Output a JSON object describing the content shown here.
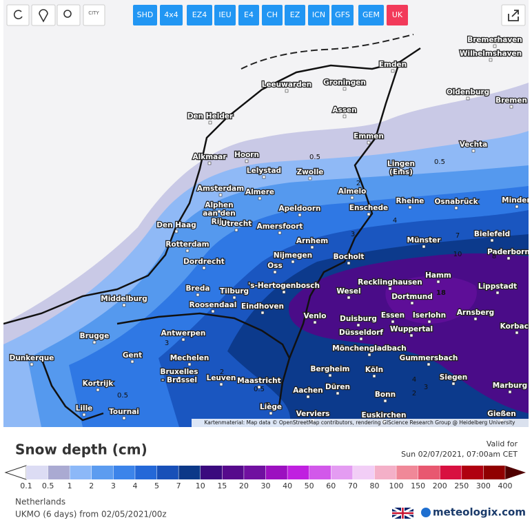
{
  "toolbar": {
    "city_icon": "CITY",
    "models": [
      "SHD",
      "4x4",
      "EZ4",
      "IEU",
      "E4",
      "CH",
      "EZ",
      "ICN",
      "GFS",
      "GEM",
      "UK"
    ]
  },
  "map": {
    "cities": [
      "Bremerhaven",
      "Wilhelmshaven",
      "Emden",
      "Leeuwarden",
      "Groningen",
      "Oldenburg",
      "Bremen",
      "Assen",
      "Den Helder",
      "Emmen",
      "Vechta",
      "Alkmaar",
      "Hoorn",
      "Lelystad",
      "Zwolle",
      [
        "Lingen",
        "(Ems)"
      ],
      "Amsterdam",
      "Almere",
      "Almelo",
      "Rheine",
      "Osnabrück",
      "Minden",
      [
        "Alphen",
        "aan den",
        "Rijn"
      ],
      "Apeldoorn",
      "Enschede",
      "Den Haag",
      "Utrecht",
      "Amersfoort",
      "Arnhem",
      "Münster",
      "Bielefeld",
      "Rotterdam",
      "Nijmegen",
      "Bocholt",
      "Dordrecht",
      "Oss",
      "Paderborn",
      "Hamm",
      "Recklinghausen",
      "Lippstadt",
      "Breda",
      "Tilburg",
      "'s-Hertogenbosch",
      "Wesel",
      "Dortmund",
      "Middelburg",
      "Roosendaal",
      "Eindhoven",
      "Arnsberg",
      "Venlo",
      "Duisburg",
      "Essen",
      "Iserlohn",
      "Korbach",
      "Wuppertal",
      "Antwerpen",
      "Brugge",
      "Düsseldorf",
      "Mönchengladbach",
      "Gent",
      "Mechelen",
      "Dunkerque",
      "Gummersbach",
      "Bergheim",
      "Köln",
      [
        "Bruxelles",
        "- Brussel"
      ],
      "Leuven",
      "Maastricht",
      "Siegen",
      "Kortrijk",
      "Düren",
      "Marburg",
      "Aachen",
      "Bonn",
      "Lille",
      "Tournai",
      "Liège",
      "Verviers",
      "Euskirchen",
      "Gießen"
    ],
    "contour_labels": [
      0.5,
      0.5,
      2,
      4,
      3,
      7,
      10,
      8,
      18,
      3,
      2,
      0.5,
      0.5,
      4,
      3,
      2
    ],
    "attribution": "Kartenmaterial: Map data © OpenStreetMap contributors, rendering GIScience Research Group @ Heidelberg University"
  },
  "legend": {
    "title": "Snow depth (cm)",
    "valid_label": "Valid for",
    "valid_time": "Sun 02/07/2021, 07:00am CET",
    "scale": {
      "labels": [
        0.1,
        0.5,
        1,
        2,
        3,
        4,
        5,
        7,
        10,
        15,
        20,
        30,
        40,
        50,
        60,
        70,
        80,
        100,
        150,
        200,
        250,
        300,
        400
      ],
      "colors": [
        "#dcdcf4",
        "#aaaad2",
        "#8cb8f8",
        "#5c9cf0",
        "#3c84ea",
        "#2468d8",
        "#1850b8",
        "#0c3888",
        "#3a0a7e",
        "#560a8c",
        "#7010a0",
        "#9c10c0",
        "#c020e0",
        "#d258ea",
        "#e49cf2",
        "#f2cef6",
        "#f4b0c8",
        "#f08898",
        "#e85870",
        "#d81040",
        "#b00010",
        "#900000"
      ]
    },
    "region": "Netherlands",
    "model_run": "UKMO (6 days) from 02/05/2021/00z",
    "brand": "meteologix.com"
  }
}
